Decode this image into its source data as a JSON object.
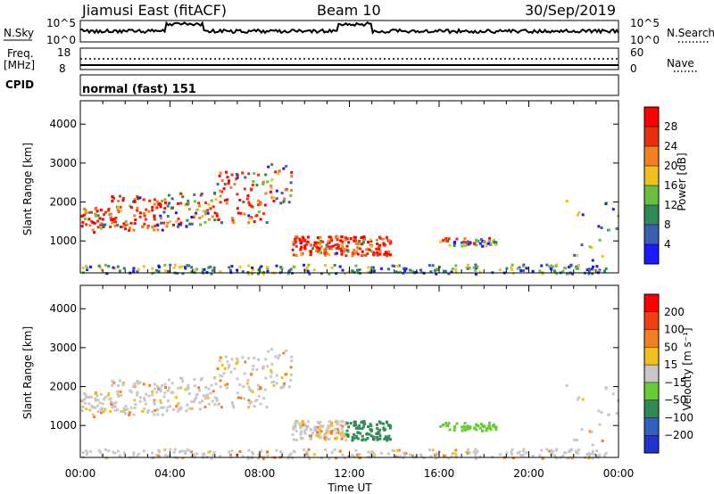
{
  "header": {
    "station": "Jiamusi East (fitACF)",
    "beam": "Beam 10",
    "date": "30/Sep/2019"
  },
  "noise_panel": {
    "left_label": "N.Sky",
    "right_label": "N.Search",
    "ticks_left": [
      "10^5",
      "10^0"
    ],
    "ticks_right": [
      "10^5",
      "10^0"
    ]
  },
  "freq_panel": {
    "label_line1": "Freq.",
    "label_line2": "[MHz]",
    "right_label": "Nave",
    "ticks_left": [
      "18",
      "8"
    ],
    "ticks_right": [
      "60",
      "0"
    ]
  },
  "cpid": {
    "label": "CPID",
    "value": "normal (fast) 151"
  },
  "chart_data": [
    {
      "type": "heatmap",
      "title": "",
      "ylabel": "Slant Range [km]",
      "xlabel": "",
      "y_ticks": [
        "1000",
        "2000",
        "3000",
        "4000"
      ],
      "ylim": [
        180,
        4600
      ],
      "colorbar": {
        "label": "Power [dB]",
        "ticks": [
          "4",
          "8",
          "12",
          "16",
          "20",
          "24",
          "28"
        ],
        "colors": [
          "#1a1aff",
          "#3a5fb0",
          "#2e8b57",
          "#6abf40",
          "#f0c020",
          "#f08020",
          "#e83010",
          "#ff0000"
        ]
      }
    },
    {
      "type": "heatmap",
      "title": "",
      "ylabel": "Slant Range [km]",
      "xlabel": "Time UT",
      "y_ticks": [
        "1000",
        "2000",
        "3000",
        "4000"
      ],
      "ylim": [
        180,
        4600
      ],
      "x_ticks": [
        "00:00",
        "04:00",
        "08:00",
        "12:00",
        "16:00",
        "20:00",
        "00:00"
      ],
      "colorbar": {
        "label": "Velocity [m s⁻¹]",
        "ticks": [
          "200",
          "100",
          "50",
          "15",
          "−15",
          "−50",
          "−100",
          "−200"
        ],
        "colors": [
          "#2233cc",
          "#3060c0",
          "#2e8b57",
          "#66cc33",
          "#c8c8c8",
          "#f0c020",
          "#f08020",
          "#f04010",
          "#ff0000"
        ]
      }
    }
  ]
}
